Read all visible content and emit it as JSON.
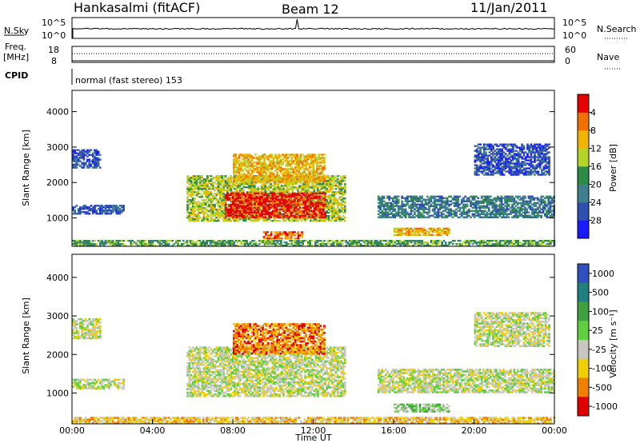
{
  "header": {
    "title": "Hankasalmi (fitACF)",
    "beam": "Beam 12",
    "date": "11/Jan/2011"
  },
  "strip_panels": {
    "nsky": {
      "label": "N.Sky",
      "right_label": "N.Search",
      "y_ticks_left": [
        "10^5",
        "10^0"
      ],
      "y_ticks_right": [
        "10^5",
        "10^0"
      ]
    },
    "freq": {
      "label_line1": "Freq.",
      "label_line2": "[MHz]",
      "right_label": "Nave",
      "y_ticks_left": [
        "18",
        "8"
      ],
      "y_ticks_right": [
        "60",
        "0"
      ]
    },
    "cpid": {
      "label": "CPID",
      "value": "normal (fast stereo) 153"
    }
  },
  "chart_data": [
    {
      "type": "heatmap",
      "panel": "power",
      "ylabel": "Slant Range [km]",
      "xlabel": "",
      "ylim": [
        200,
        4600
      ],
      "y_ticks": [
        "1000",
        "2000",
        "3000",
        "4000"
      ],
      "colorbar": {
        "label": "Power [dB]",
        "ticks": [
          "4",
          "8",
          "12",
          "16",
          "20",
          "24",
          "28"
        ],
        "colors": [
          "#1a1aff",
          "#2f4fb0",
          "#3f7f8f",
          "#2e8a47",
          "#b5d426",
          "#f0b400",
          "#f07000",
          "#e60000"
        ]
      },
      "regions": [
        {
          "t0": 0.0,
          "t1": 24.0,
          "r0": 200,
          "r1": 380,
          "level": 3
        },
        {
          "t0": 0.0,
          "t1": 1.4,
          "r0": 2400,
          "r1": 2900,
          "level": 1
        },
        {
          "t0": 0.0,
          "t1": 2.6,
          "r0": 1100,
          "r1": 1350,
          "level": 1
        },
        {
          "t0": 5.7,
          "t1": 13.6,
          "r0": 900,
          "r1": 2200,
          "level": 4
        },
        {
          "t0": 7.6,
          "t1": 12.6,
          "r0": 1000,
          "r1": 1700,
          "level": 7
        },
        {
          "t0": 8.0,
          "t1": 12.5,
          "r0": 2000,
          "r1": 2800,
          "level": 5
        },
        {
          "t0": 9.5,
          "t1": 11.4,
          "r0": 400,
          "r1": 600,
          "level": 6
        },
        {
          "t0": 15.2,
          "t1": 24.0,
          "r0": 1000,
          "r1": 1600,
          "level": 2
        },
        {
          "t0": 16.0,
          "t1": 18.7,
          "r0": 500,
          "r1": 720,
          "level": 5
        },
        {
          "t0": 20.0,
          "t1": 23.7,
          "r0": 2200,
          "r1": 3100,
          "level": 1
        }
      ]
    },
    {
      "type": "heatmap",
      "panel": "velocity",
      "ylabel": "Slant Range [km]",
      "xlabel": "Time UT",
      "ylim": [
        200,
        4600
      ],
      "y_ticks": [
        "1000",
        "2000",
        "3000",
        "4000"
      ],
      "x_ticks": [
        "00:00",
        "04:00",
        "08:00",
        "12:00",
        "16:00",
        "20:00",
        "00:00"
      ],
      "xlim": [
        0,
        24
      ],
      "colorbar": {
        "label": "Velocity [m s⁻¹]",
        "ticks": [
          "1000",
          "500",
          "100",
          "25",
          "-25",
          "-100",
          "-500",
          "-1000"
        ],
        "colors": [
          "#3050c0",
          "#208080",
          "#40a040",
          "#60d040",
          "#c8c8c0",
          "#f0d000",
          "#f08000",
          "#e00000"
        ]
      },
      "regions": [
        {
          "t0": 0.0,
          "t1": 24.0,
          "r0": 200,
          "r1": 380,
          "level": 5
        },
        {
          "t0": 0.0,
          "t1": 1.4,
          "r0": 2400,
          "r1": 2900,
          "level": 4
        },
        {
          "t0": 0.0,
          "t1": 2.6,
          "r0": 1100,
          "r1": 1350,
          "level": 4
        },
        {
          "t0": 5.7,
          "t1": 13.6,
          "r0": 900,
          "r1": 2200,
          "level": 4
        },
        {
          "t0": 8.0,
          "t1": 12.5,
          "r0": 2000,
          "r1": 2800,
          "level": 6
        },
        {
          "t0": 15.2,
          "t1": 24.0,
          "r0": 1000,
          "r1": 1600,
          "level": 4
        },
        {
          "t0": 16.0,
          "t1": 18.7,
          "r0": 500,
          "r1": 720,
          "level": 3
        },
        {
          "t0": 20.0,
          "t1": 23.7,
          "r0": 2200,
          "r1": 3100,
          "level": 4
        }
      ]
    }
  ]
}
